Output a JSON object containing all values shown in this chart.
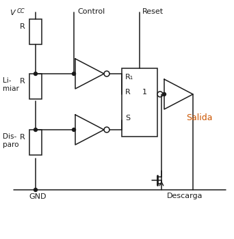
{
  "bg_color": "#ffffff",
  "line_color": "#1a1a1a",
  "vcc_label": "V",
  "vcc_sub": "CC",
  "control_label": "Control",
  "reset_label": "Reset",
  "limiar_label": "Li-\nmiar",
  "disparo_label": "Dis-\nparo",
  "gnd_label": "GND",
  "salida_label": "Salida",
  "descarga_label": "Descarga",
  "r1_box_label": "R₁",
  "r_label": "R",
  "s_label": "S",
  "r_ff_label": "R",
  "one_label": "1"
}
